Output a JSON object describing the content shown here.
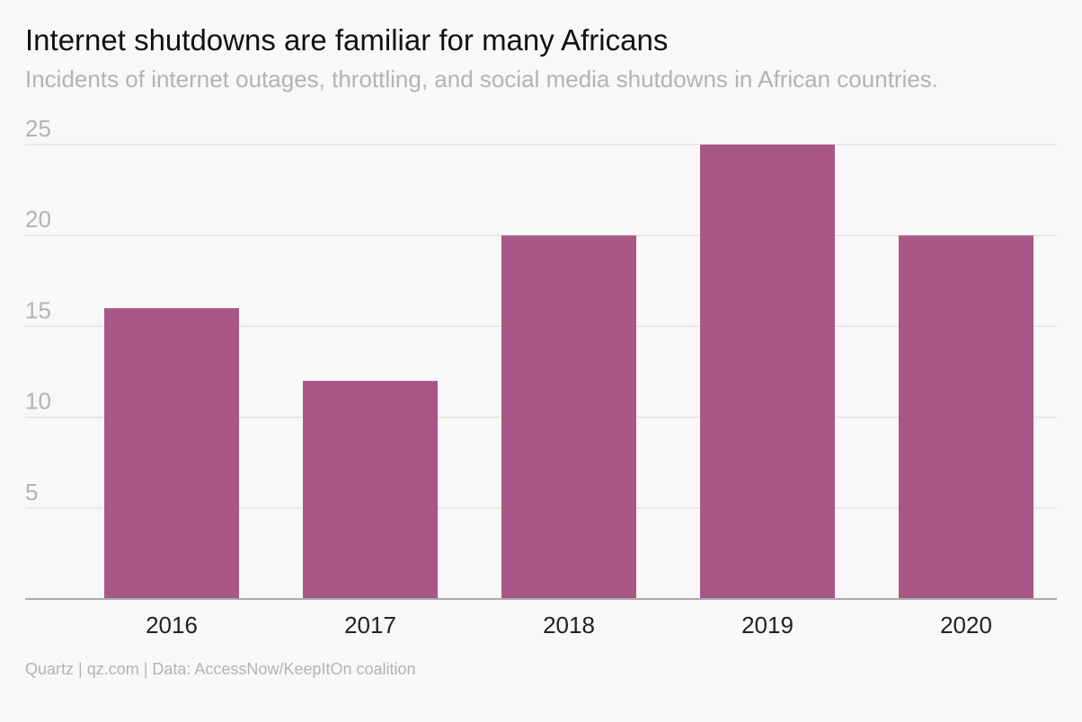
{
  "header": {
    "title": "Internet shutdowns are familiar for many Africans",
    "subtitle": "Incidents of internet outages, throttling, and social media shutdowns in African countries."
  },
  "footer": {
    "source": "Quartz | qz.com | Data: AccessNow/KeepItOn coalition"
  },
  "colors": {
    "bar": "#a85786",
    "grid": "#e2e2e2",
    "axis": "#aaaaaa",
    "y_tick": "#b3b3b3",
    "x_tick": "#222222"
  },
  "chart_data": {
    "type": "bar",
    "categories": [
      "2016",
      "2017",
      "2018",
      "2019",
      "2020"
    ],
    "values": [
      16,
      12,
      20,
      25,
      20
    ],
    "ylim": [
      0,
      25
    ],
    "yticks": [
      5,
      10,
      15,
      20,
      25
    ],
    "grid": true,
    "legend": "none"
  }
}
